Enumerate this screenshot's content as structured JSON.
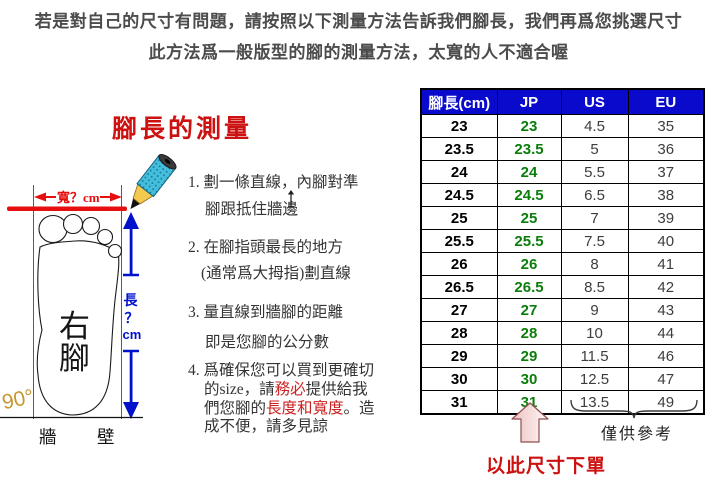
{
  "intro": {
    "line1": "若是對自己的尺寸有問題，請按照以下測量方法告訴我們腳長，我們再爲您挑選尺寸",
    "line2": "此方法爲一般版型的腳的測量方法，太寬的人不適合喔"
  },
  "diagram": {
    "title": "腳長的測量",
    "width_label": "寬？cm",
    "length_label_char1": "長",
    "length_label_char2": "？",
    "length_label_char3": "cm",
    "foot_label_char1": "右",
    "foot_label_char2": "腳",
    "angle_label": "90°",
    "wall_label_left": "牆",
    "wall_label_right": "壁"
  },
  "steps": {
    "s1a": "1. 劃一條直線，內腳對準",
    "s1b": "腳跟抵住牆邊",
    "s2a": "2. 在腳指頭最長的地方",
    "s2b": "(通常爲大拇指)劃直線",
    "s3a": "3. 量直線到牆腳的距離",
    "s3b": "即是您腳的公分數",
    "s4_lines": [
      [
        {
          "t": "4. 爲確保您可以買到更確切"
        }
      ],
      [
        {
          "t": "的size，請"
        },
        {
          "t": "務必",
          "red": true
        },
        {
          "t": "提供給我"
        }
      ],
      [
        {
          "t": "們您腳的"
        },
        {
          "t": "長度和寬度",
          "red": true
        },
        {
          "t": "。造"
        }
      ],
      [
        {
          "t": "成不便，請多見諒"
        }
      ]
    ]
  },
  "size_chart": {
    "headers": [
      "腳長(cm)",
      "JP",
      "US",
      "EU"
    ],
    "rows": [
      [
        "23",
        "23",
        "4.5",
        "35"
      ],
      [
        "23.5",
        "23.5",
        "5",
        "36"
      ],
      [
        "24",
        "24",
        "5.5",
        "37"
      ],
      [
        "24.5",
        "24.5",
        "6.5",
        "38"
      ],
      [
        "25",
        "25",
        "7",
        "39"
      ],
      [
        "25.5",
        "25.5",
        "7.5",
        "40"
      ],
      [
        "26",
        "26",
        "8",
        "41"
      ],
      [
        "26.5",
        "26.5",
        "8.5",
        "42"
      ],
      [
        "27",
        "27",
        "9",
        "43"
      ],
      [
        "28",
        "28",
        "10",
        "44"
      ],
      [
        "29",
        "29",
        "11.5",
        "46"
      ],
      [
        "30",
        "30",
        "12.5",
        "47"
      ],
      [
        "31",
        "31",
        "13.5",
        "49"
      ]
    ]
  },
  "table_notes": {
    "order": "以此尺寸下單",
    "reference": "僅供參考"
  },
  "colors": {
    "header_blue": "#0a0acc",
    "jp_green": "#0b7d0b",
    "accent_red": "#cc1111",
    "measure_blue": "#0011cc",
    "angle_orange": "#c89630",
    "pencil_cyan": "#45bedd",
    "pencil_wood": "#f4c94f",
    "arrow_pink": "#f3cdcd"
  }
}
